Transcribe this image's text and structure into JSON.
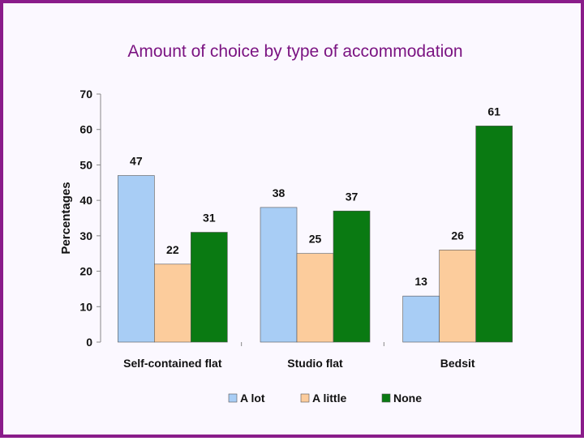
{
  "chart_data": {
    "type": "bar",
    "title": "Amount of choice by type of accommodation",
    "xlabel": "",
    "ylabel": "Percentages",
    "categories": [
      "Self-contained flat",
      "Studio flat",
      "Bedsit"
    ],
    "series": [
      {
        "name": "A lot",
        "values": [
          47,
          38,
          13
        ],
        "color": "#a8cdf5"
      },
      {
        "name": "A little",
        "values": [
          22,
          25,
          26
        ],
        "color": "#fccc9c"
      },
      {
        "name": "None",
        "values": [
          31,
          37,
          61
        ],
        "color": "#0a7a12"
      }
    ],
    "ylim": [
      0,
      70
    ],
    "yticks": [
      0,
      10,
      20,
      30,
      40,
      50,
      60,
      70
    ],
    "grid": false,
    "legend": "bottom"
  },
  "colors": {
    "border": "#8a1c8a",
    "title": "#7b1482"
  }
}
